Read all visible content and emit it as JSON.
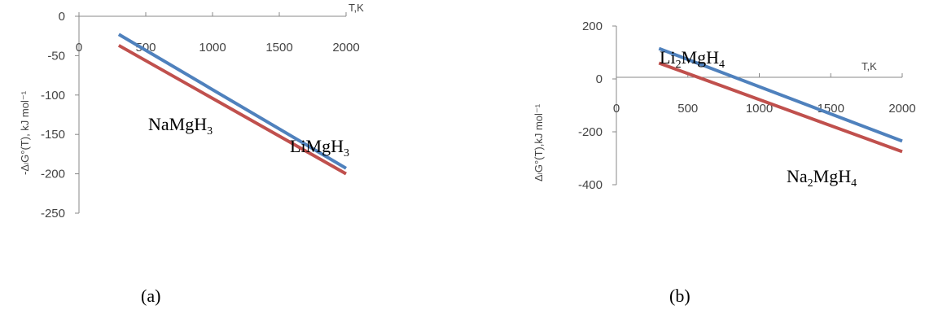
{
  "chart_data": [
    {
      "type": "line",
      "caption": "(a)",
      "xlabel": "T,K",
      "ylabel": "-ΔₗG°(T), kJ mol⁻¹",
      "xlim": [
        0,
        2000
      ],
      "ylim": [
        -250,
        0
      ],
      "x_ticks": [
        "0",
        "500",
        "1000",
        "1500",
        "2000"
      ],
      "y_ticks": [
        "0",
        "-50",
        "-100",
        "-150",
        "-200",
        "-250"
      ],
      "x_tick_values": [
        0,
        500,
        1000,
        1500,
        2000
      ],
      "y_tick_values": [
        0,
        -50,
        -100,
        -150,
        -200,
        -250
      ],
      "grid": false,
      "series": [
        {
          "name": "LiMgH3",
          "color": "#4f81bd",
          "x": [
            298,
            2000
          ],
          "y": [
            -23,
            -193
          ]
        },
        {
          "name": "NaMgH3",
          "color": "#c0504d",
          "x": [
            298,
            2000
          ],
          "y": [
            -37,
            -200
          ]
        }
      ],
      "annotations": [
        {
          "text": "NaMgH3",
          "base": "NaMgH",
          "sub": "3"
        },
        {
          "text": "LiMgH3",
          "base": "LiMgH",
          "sub": "3"
        }
      ]
    },
    {
      "type": "line",
      "caption": "(b)",
      "xlabel": "T,K",
      "ylabel": "ΔₗG°(T),kJ  mol⁻¹",
      "xlim": [
        0,
        2000
      ],
      "ylim": [
        -400,
        200
      ],
      "x_ticks": [
        "0",
        "500",
        "1000",
        "1500",
        "2000"
      ],
      "y_ticks": [
        "200",
        "0",
        "-200",
        "-400"
      ],
      "x_tick_values": [
        0,
        500,
        1000,
        1500,
        2000
      ],
      "y_tick_values": [
        200,
        0,
        -200,
        -400
      ],
      "grid": false,
      "series": [
        {
          "name": "Li2MgH4",
          "color": "#4f81bd",
          "x": [
            298,
            2000
          ],
          "y": [
            115,
            -235
          ]
        },
        {
          "name": "Na2MgH4",
          "color": "#c0504d",
          "x": [
            298,
            2000
          ],
          "y": [
            60,
            -275
          ]
        }
      ],
      "annotations": [
        {
          "text": "Li2MgH4",
          "parts": [
            "Li",
            "2",
            "MgH",
            "4"
          ]
        },
        {
          "text": "Na2MgH4",
          "parts": [
            "Na",
            "2",
            "MgH",
            "4"
          ]
        }
      ]
    }
  ]
}
